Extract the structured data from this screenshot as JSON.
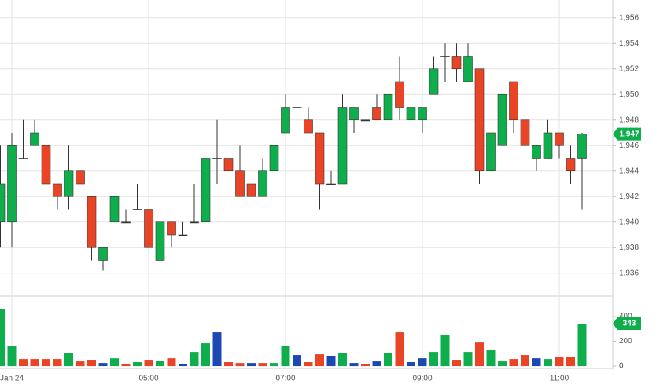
{
  "chart_data": {
    "type": "candlestick",
    "categories": [
      null,
      "Jan 24",
      null,
      null,
      null,
      null,
      null,
      null,
      null,
      null,
      null,
      null,
      null,
      "05:00",
      null,
      null,
      null,
      null,
      null,
      null,
      null,
      null,
      null,
      null,
      null,
      "07:00",
      null,
      null,
      null,
      null,
      null,
      null,
      null,
      null,
      null,
      null,
      null,
      "09:00",
      null,
      null,
      null,
      null,
      null,
      null,
      null,
      null,
      null,
      null,
      null,
      "11:00",
      null,
      null
    ],
    "open": [
      1940,
      1940,
      1945,
      1946,
      1946,
      1943,
      1942,
      1944,
      1942,
      1937,
      1940,
      1940,
      1941,
      1941,
      1937,
      1940,
      1939,
      1940,
      1940,
      1945,
      1945,
      1944,
      1943,
      1942,
      1944,
      1947,
      1949,
      1948,
      1947,
      1943,
      1943,
      1948,
      1948,
      1949,
      1948,
      1951,
      1948,
      1948,
      1950,
      1953,
      1953,
      1951,
      1952,
      1944,
      1946,
      1951,
      1948,
      1945,
      1945,
      1947,
      1945,
      1945
    ],
    "high": [
      1946,
      1947,
      1948,
      1948,
      1946,
      1943,
      1946,
      1944,
      1942,
      1938,
      1942,
      1941,
      1943,
      1941,
      1940,
      1940,
      1940,
      1943,
      1945,
      1948,
      1945,
      1946,
      1943,
      1945,
      1946,
      1950,
      1951,
      1949,
      1947,
      1944,
      1950,
      1949,
      1948,
      1950,
      1950,
      1953,
      1949,
      1949,
      1953,
      1954,
      1954,
      1954,
      1952,
      1947,
      1950,
      1951,
      1948,
      1946,
      1948,
      1947,
      1946,
      1947
    ],
    "low": [
      1938,
      1938,
      1945,
      1946,
      1943,
      1941,
      1941,
      1943,
      1937,
      1936.2,
      1940,
      1940,
      1941,
      1938,
      1937,
      1938,
      1939,
      1940,
      1940,
      1943,
      1944,
      1942,
      1942,
      1942,
      1944,
      1947,
      1949,
      1947,
      1941,
      1943,
      1943,
      1947,
      1948,
      1948,
      1948,
      1948,
      1947,
      1947,
      1950,
      1951,
      1951,
      1951,
      1943,
      1944,
      1946,
      1947,
      1944,
      1944,
      1945,
      1945,
      1943,
      1941
    ],
    "close": [
      1943,
      1946,
      1945,
      1947,
      1943,
      1942,
      1944,
      1943,
      1938,
      1938,
      1942,
      1940,
      1941,
      1938,
      1940,
      1939,
      1939,
      1940,
      1945,
      1945,
      1944,
      1942,
      1942,
      1944,
      1946,
      1949,
      1949,
      1947,
      1943,
      1943,
      1949,
      1949,
      1948,
      1948,
      1950,
      1949,
      1949,
      1949,
      1952,
      1953,
      1952,
      1953,
      1944,
      1947,
      1950,
      1948,
      1946,
      1946,
      1947,
      1946,
      1944,
      1946.9
    ],
    "up_color": "#0fae4c",
    "down_color": "#ea4427",
    "flat_color": "#333333",
    "ylim": [
      1934.2,
      1957.4
    ],
    "yticks": [
      {
        "value": 1936,
        "label": "1,936"
      },
      {
        "value": 1938,
        "label": "1,938"
      },
      {
        "value": 1940,
        "label": "1,940"
      },
      {
        "value": 1942,
        "label": "1,942"
      },
      {
        "value": 1944,
        "label": "1,944"
      },
      {
        "value": 1946,
        "label": "1,946"
      },
      {
        "value": 1948,
        "label": "1,948"
      },
      {
        "value": 1950,
        "label": "1,950"
      },
      {
        "value": 1952,
        "label": "1,952"
      },
      {
        "value": 1954,
        "label": "1,954"
      },
      {
        "value": 1956,
        "label": "1,956"
      }
    ],
    "last_price": {
      "value": 1946.9,
      "label": "1,947"
    },
    "volume": {
      "values": [
        463,
        159,
        57,
        57,
        57,
        57,
        108,
        38,
        51,
        25,
        63,
        19,
        32,
        51,
        44,
        63,
        19,
        114,
        184,
        273,
        32,
        25,
        25,
        25,
        25,
        159,
        89,
        32,
        95,
        83,
        108,
        25,
        19,
        38,
        108,
        273,
        32,
        63,
        114,
        254,
        51,
        114,
        190,
        133,
        38,
        57,
        89,
        63,
        57,
        76,
        76,
        343
      ],
      "colors": [
        "#0fae4c",
        "#0fae4c",
        "#ea4427",
        "#ea4427",
        "#ea4427",
        "#ea4427",
        "#0fae4c",
        "#ea4427",
        "#ea4427",
        "#1c48b3",
        "#0fae4c",
        "#ea4427",
        "#0fae4c",
        "#ea4427",
        "#0fae4c",
        "#ea4427",
        "#1c48b3",
        "#0fae4c",
        "#0fae4c",
        "#1c48b3",
        "#ea4427",
        "#ea4427",
        "#1c48b3",
        "#ea4427",
        "#0fae4c",
        "#0fae4c",
        "#1c48b3",
        "#ea4427",
        "#ea4427",
        "#1c48b3",
        "#0fae4c",
        "#1c48b3",
        "#ea4427",
        "#1c48b3",
        "#0fae4c",
        "#ea4427",
        "#1c48b3",
        "#1c48b3",
        "#0fae4c",
        "#0fae4c",
        "#ea4427",
        "#0fae4c",
        "#ea4427",
        "#0fae4c",
        "#0fae4c",
        "#ea4427",
        "#ea4427",
        "#1c48b3",
        "#0fae4c",
        "#ea4427",
        "#ea4427",
        "#0fae4c"
      ],
      "ylim": [
        -25,
        559
      ],
      "yticks": [
        0,
        200,
        400
      ],
      "last_label": "343"
    },
    "grid": true
  }
}
